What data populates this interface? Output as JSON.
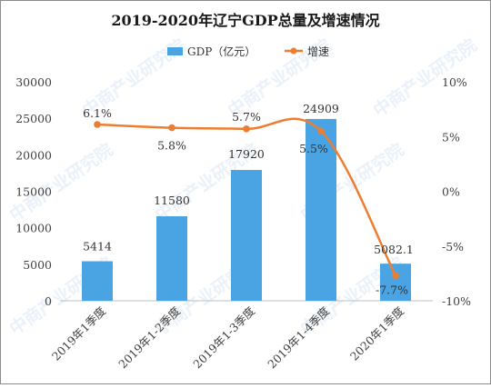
{
  "chart_data": {
    "type": "bar",
    "title": "2019-2020年辽宁GDP总量及增速情况",
    "categories": [
      "2019年1季度",
      "2019年1-2季度",
      "2019年1-3季度",
      "2019年1-4季度",
      "2020年1季度"
    ],
    "series": [
      {
        "name": "GDP（亿元）",
        "type": "bar",
        "axis": "left",
        "values": [
          5414,
          11580,
          17920,
          24909,
          5082.1
        ],
        "labels": [
          "5414",
          "11580",
          "17920",
          "24909",
          "5082.1"
        ],
        "color": "#4aa3e3"
      },
      {
        "name": "增速",
        "type": "line",
        "axis": "right",
        "values": [
          6.1,
          5.8,
          5.7,
          5.5,
          -7.7
        ],
        "labels": [
          "6.1%",
          "5.8%",
          "5.7%",
          "5.5%",
          "-7.7%"
        ],
        "color": "#ed7d31"
      }
    ],
    "y_left": {
      "range": [
        0,
        30000
      ],
      "ticks": [
        "0",
        "5000",
        "10000",
        "15000",
        "20000",
        "25000",
        "30000"
      ]
    },
    "y_right": {
      "range": [
        -10,
        10
      ],
      "ticks": [
        "-10%",
        "-5%",
        "0%",
        "5%",
        "10%"
      ]
    },
    "legend_position": "top-center",
    "grid": false
  },
  "watermark": "中商产业研究院"
}
